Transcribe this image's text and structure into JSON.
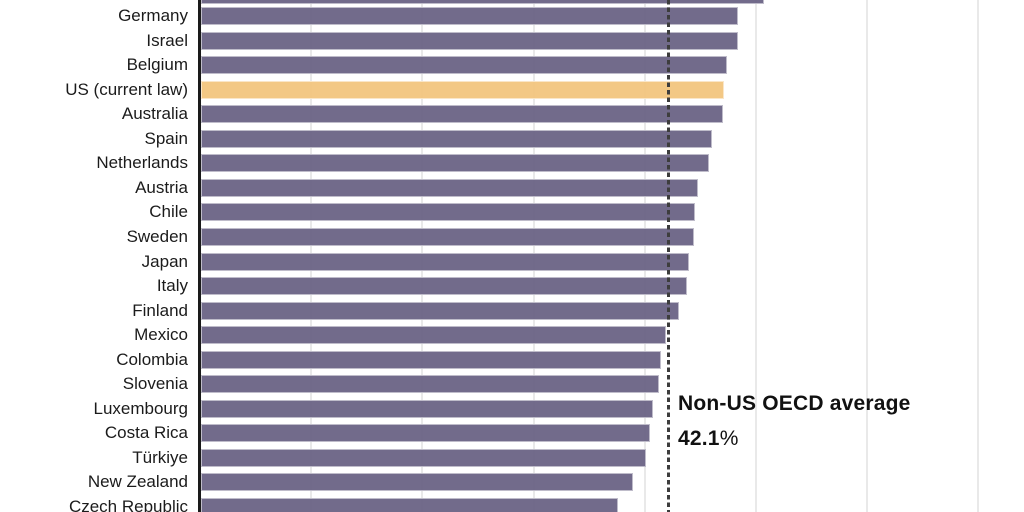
{
  "chart_data": {
    "type": "bar",
    "orientation": "horizontal",
    "unit": "%",
    "note": "chart cropped: top and bottom rows partially clipped, no axis tick labels visible",
    "categories": [
      "Germany",
      "Israel",
      "Belgium",
      "US (current law)",
      "Australia",
      "Spain",
      "Netherlands",
      "Austria",
      "Chile",
      "Sweden",
      "Japan",
      "Italy",
      "Finland",
      "Mexico",
      "Colombia",
      "Slovenia",
      "Luxembourg",
      "Costa Rica",
      "Türkiye",
      "New Zealand",
      "Czech Republic"
    ],
    "values": [
      48.4,
      48.4,
      47.4,
      47.1,
      47.0,
      46.0,
      45.8,
      44.8,
      44.5,
      44.4,
      44.0,
      43.8,
      43.1,
      41.9,
      41.5,
      41.3,
      40.7,
      40.5,
      40.1,
      38.9,
      37.6
    ],
    "clipped_top_bar_value": 50.7,
    "highlight_category": "US (current law)",
    "annotation": {
      "line1": "Non-US OECD average",
      "value": "42.1",
      "suffix": "%"
    },
    "reference_line_value": 42.1,
    "x_axis": {
      "min": 0,
      "gridline_step": 10,
      "visible_gridlines": [
        10,
        20,
        30,
        40,
        50,
        60,
        70
      ]
    },
    "legend": null,
    "colors": {
      "bar": "#716B8B",
      "bar_rgba": "rgba(106,99,133,0.95)",
      "highlight": "#F3C884",
      "highlight_rgba": "rgba(242,197,126,0.95)",
      "gridline": "#E9E9E9",
      "axis": "#1A1A1A",
      "reference_line": "#3D3D3D",
      "label_text": "#1B1B1B",
      "annotation_text": "#111111"
    }
  }
}
